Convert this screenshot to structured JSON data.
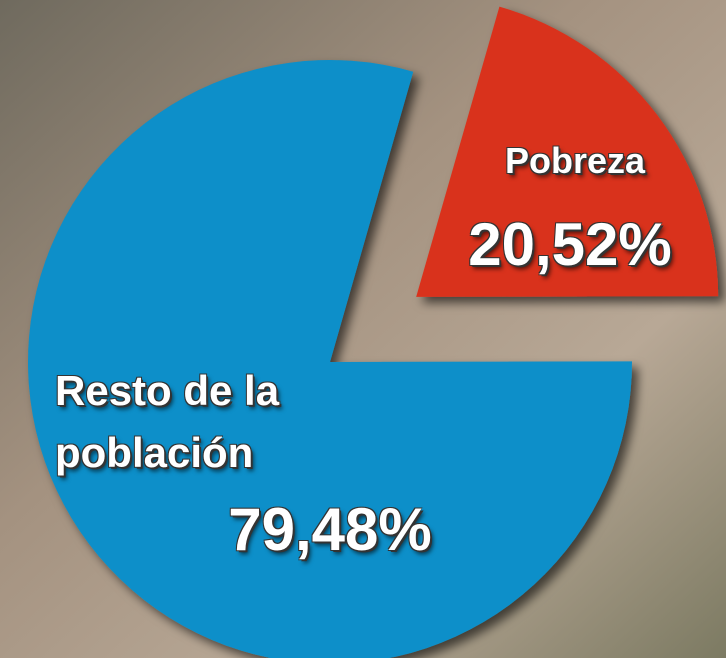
{
  "chart_data": {
    "type": "pie",
    "categories": [
      "Pobreza",
      "Resto de la población"
    ],
    "values": [
      20.52,
      79.48
    ],
    "value_labels": [
      "20,52%",
      "79,48%"
    ],
    "colors": [
      "#d9321d",
      "#0b8fc9"
    ]
  }
}
